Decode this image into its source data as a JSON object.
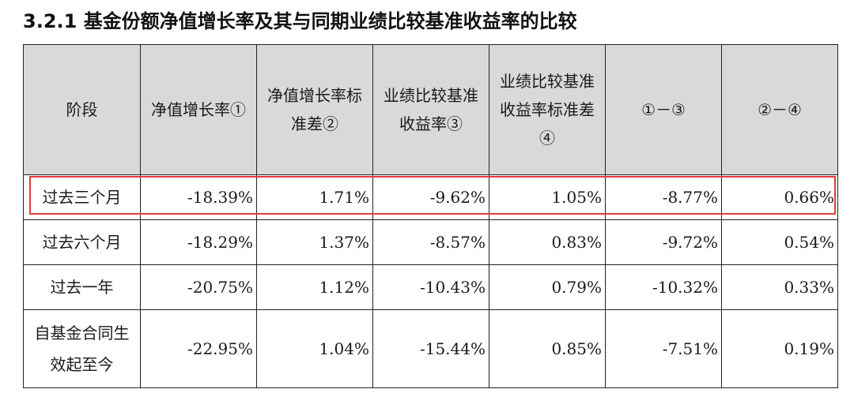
{
  "title": "3.2.1 基金份额净值增长率及其与同期业绩比较基准收益率的比较",
  "highlight_color": "#e23a3a",
  "header_bg": "#d9d9d9",
  "table": {
    "headers": [
      "阶段",
      "净值增长率①",
      "净值增长率标准差②",
      "业绩比较基准收益率③",
      "业绩比较基准收益率标准差④",
      "①－③",
      "②－④"
    ],
    "rows": [
      {
        "stage": "过去三个月",
        "cells": [
          "-18.39%",
          "1.71%",
          "-9.62%",
          "1.05%",
          "-8.77%",
          "0.66%"
        ]
      },
      {
        "stage": "过去六个月",
        "cells": [
          "-18.29%",
          "1.37%",
          "-8.57%",
          "0.83%",
          "-9.72%",
          "0.54%"
        ]
      },
      {
        "stage": "过去一年",
        "cells": [
          "-20.75%",
          "1.12%",
          "-10.43%",
          "0.79%",
          "-10.32%",
          "0.33%"
        ]
      },
      {
        "stage": "自基金合同生效起至今",
        "cells": [
          "-22.95%",
          "1.04%",
          "-15.44%",
          "0.85%",
          "-7.51%",
          "0.19%"
        ]
      }
    ]
  }
}
